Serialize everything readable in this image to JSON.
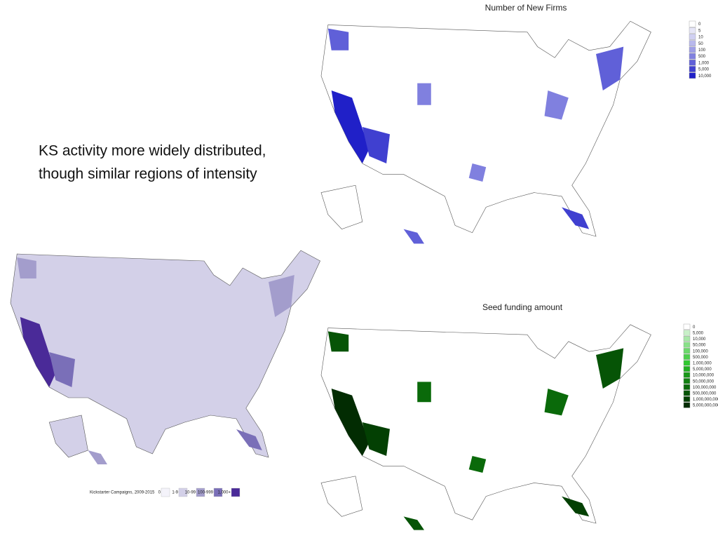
{
  "caption": {
    "lines": [
      "KS activity more widely distributed,",
      "though similar regions of intensity"
    ]
  },
  "maps": [
    {
      "title": "Number of New Firms",
      "legend": [
        "0",
        "5",
        "10",
        "50",
        "100",
        "500",
        "1,000",
        "5,000",
        "10,000"
      ],
      "colors": [
        "#ffffff",
        "#e6e6f7",
        "#d0d0f2",
        "#b8b8ec",
        "#9e9ee6",
        "#8080df",
        "#6060d8",
        "#4040d0",
        "#2020c8"
      ]
    },
    {
      "title": "Seed funding amount",
      "legend": [
        "0",
        "5,000",
        "10,000",
        "50,000",
        "100,000",
        "500,000",
        "1,000,000",
        "5,000,000",
        "10,000,000",
        "50,000,000",
        "100,000,000",
        "500,000,000",
        "1,000,000,000",
        "5,000,000,000"
      ],
      "colors": [
        "#ffffff",
        "#c8f0c8",
        "#a8e8a8",
        "#88e088",
        "#6ad86a",
        "#4cd04c",
        "#30c830",
        "#20b020",
        "#189818",
        "#108010",
        "#0a6a0a",
        "#065406",
        "#034003",
        "#022c02"
      ]
    },
    {
      "title": "Kickstarter Campaigns, 2009-2015",
      "legend": [
        "0",
        "1-9",
        "10-99",
        "100-999",
        "1,000+"
      ],
      "colors": [
        "#f4f3fa",
        "#d3d0e8",
        "#a39dcc",
        "#7a6fb8",
        "#4a2a98"
      ]
    }
  ]
}
